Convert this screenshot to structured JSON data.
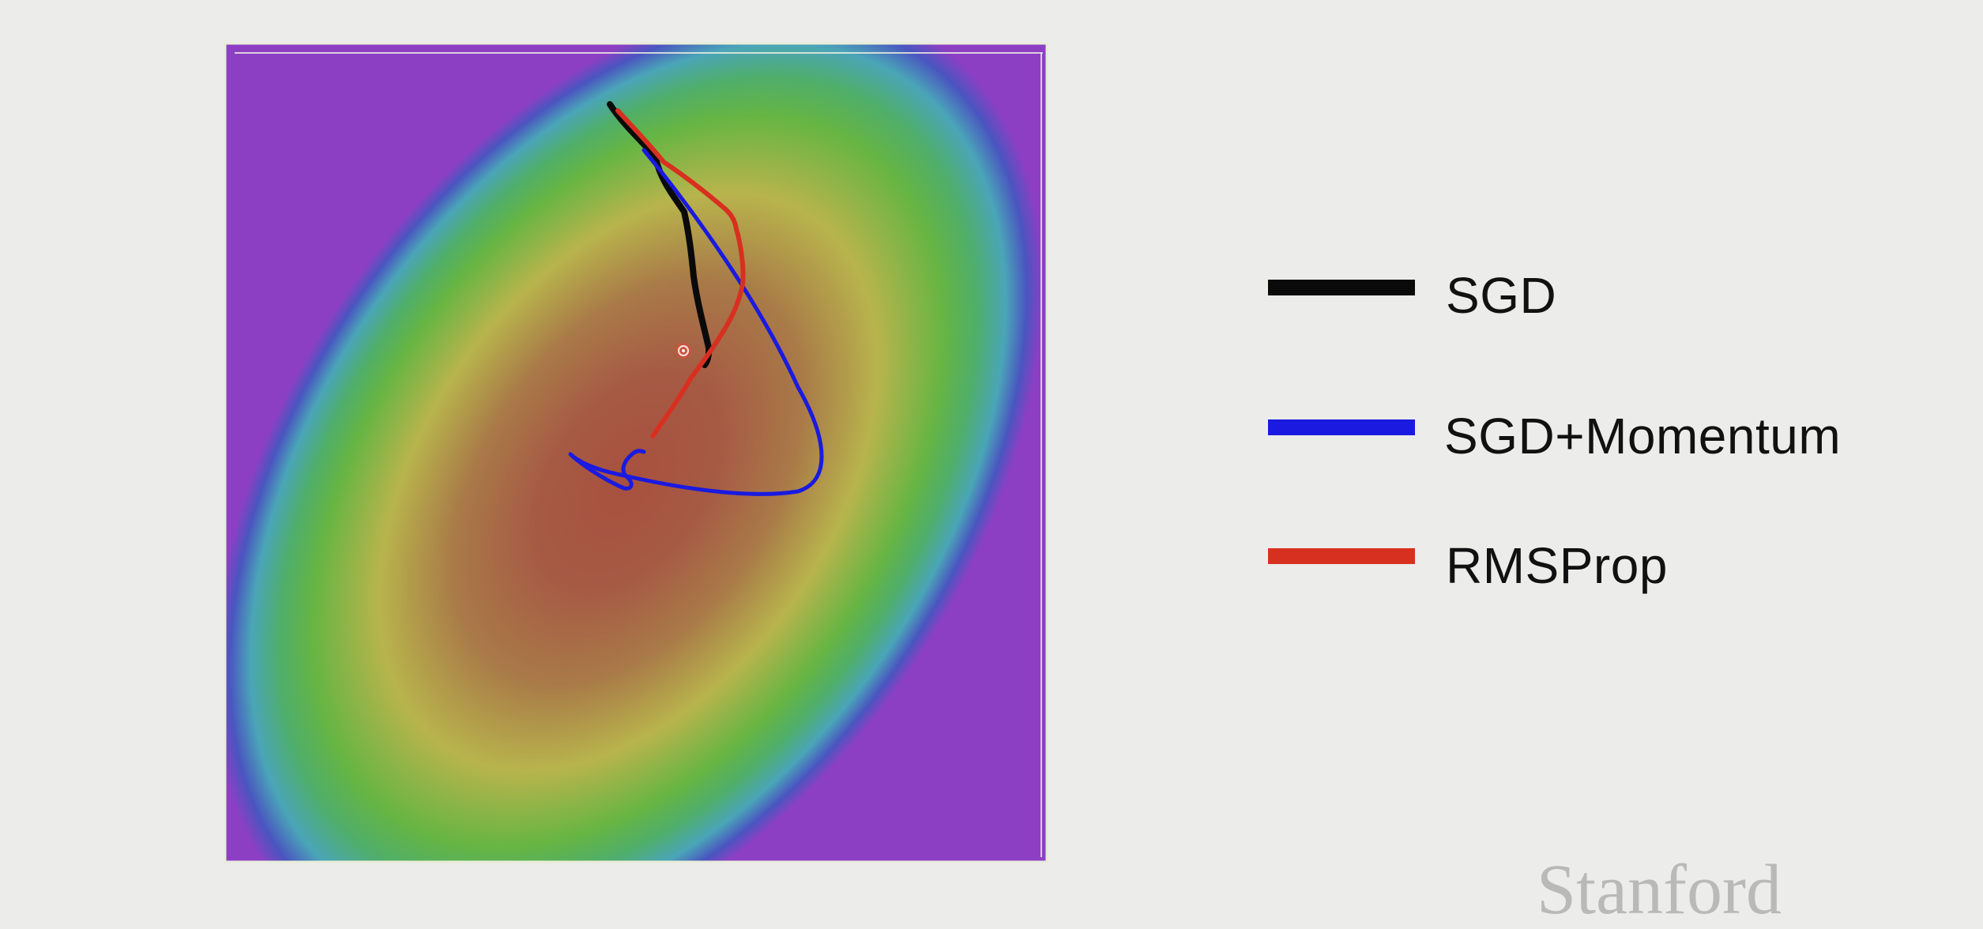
{
  "legend": {
    "items": [
      {
        "label": "SGD",
        "color": "#0a0a0a"
      },
      {
        "label": "SGD+Momentum",
        "color": "#1a1ae0"
      },
      {
        "label": "RMSProp",
        "color": "#d83020"
      }
    ]
  },
  "watermark": "Stanford",
  "colors": {
    "background": "#ececea",
    "contour_center": "#a85a45",
    "contour_outer": "#8a3fc0",
    "sgd": "#0a0a0a",
    "momentum": "#1a1ae0",
    "rmsprop": "#d83020"
  },
  "icons": {
    "marker": "target-dot-icon"
  }
}
